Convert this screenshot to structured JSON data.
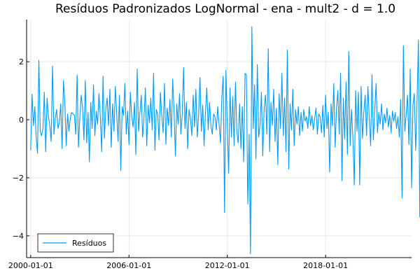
{
  "chart_data": {
    "type": "line",
    "title": "Resíduos Padronizados LogNormal - ena - mult2 - d = 1.0",
    "xlabel": "",
    "ylabel": "",
    "x_start": "2000-01",
    "x_frequency": "monthly",
    "x_ticks": [
      "2000-01-01",
      "2006-01-01",
      "2012-01-01",
      "2018-01-01"
    ],
    "y_ticks": [
      -4,
      -2,
      0,
      2
    ],
    "y_tick_labels": [
      "−4",
      "−2",
      "0",
      "2"
    ],
    "xlim": [
      "1999-10-01",
      "2023-04-01"
    ],
    "ylim": [
      -4.75,
      3.45
    ],
    "grid": true,
    "legend_position": "bottom-left",
    "series": [
      {
        "name": "Resíduos",
        "color": "#009AFA",
        "values": [
          -1.05,
          0.88,
          -0.2,
          0.45,
          -0.6,
          -1.15,
          2.05,
          -0.4,
          -0.55,
          -0.3,
          0.95,
          -1.1,
          0.75,
          0.1,
          -0.2,
          -0.75,
          1.85,
          -0.5,
          0.05,
          0.35,
          -0.3,
          -0.1,
          0.55,
          -1.0,
          1.35,
          0.6,
          -0.9,
          0.2,
          -0.4,
          0.05,
          0.25,
          0.2,
          0.15,
          -0.5,
          1.55,
          -0.95,
          0.1,
          0.85,
          0.4,
          -0.7,
          1.35,
          -0.8,
          0.25,
          -1.45,
          0.6,
          -0.3,
          1.2,
          -0.55,
          0.3,
          -0.15,
          0.9,
          0.1,
          -1.1,
          1.5,
          -0.65,
          0.35,
          0.75,
          -0.2,
          1.05,
          -0.95,
          0.55,
          -0.4,
          1.15,
          0.2,
          -0.75,
          0.85,
          -1.75,
          0.45,
          0.15,
          1.25,
          -0.5,
          0.3,
          -0.85,
          0.95,
          0.1,
          -0.25,
          0.6,
          -1.2,
          1.75,
          -0.4,
          0.25,
          0.85,
          -0.6,
          0.05,
          1.1,
          -0.9,
          0.5,
          -0.1,
          0.75,
          -0.35,
          1.6,
          -1.05,
          0.35,
          0.2,
          -0.7,
          0.95,
          0.15,
          -0.45,
          1.25,
          -0.85,
          0.4,
          -0.2,
          0.7,
          -0.6,
          1.4,
          0.3,
          -1.25,
          0.55,
          -0.15,
          0.9,
          -0.5,
          0.2,
          1.8,
          -0.3,
          0.6,
          -1.0,
          0.35,
          0.05,
          -0.55,
          0.85,
          -0.25,
          1.05,
          -0.6,
          0.15,
          1.45,
          -0.4,
          0.5,
          -0.9,
          0.2,
          1.1,
          -0.35,
          0.6,
          -0.2,
          -0.5,
          0.2,
          0.1,
          -0.35,
          0.45,
          -0.15,
          -0.8,
          0.75,
          1.5,
          -3.2,
          1.7,
          -0.2,
          -1.85,
          1.1,
          -0.6,
          0.8,
          -0.9,
          1.3,
          -0.4,
          -0.8,
          0.55,
          -1.0,
          0.45,
          -1.45,
          1.6,
          1.55,
          -2.9,
          -0.5,
          -4.62,
          3.2,
          -0.3,
          1.2,
          -1.35,
          1.9,
          -0.6,
          -0.2,
          0.95,
          -1.25,
          0.4,
          0.85,
          -0.5,
          2.45,
          -1.1,
          0.6,
          -0.2,
          1.05,
          -0.75,
          0.4,
          -1.55,
          0.9,
          -0.3,
          1.6,
          -0.55,
          0.75,
          -1.1,
          2.4,
          -1.7,
          0.55,
          -0.35,
          1.05,
          -0.9,
          0.35,
          -0.15,
          0.45,
          -0.55,
          0.25,
          -0.4,
          0.35,
          -0.05,
          0.1,
          -0.3,
          0.45,
          -0.2,
          0.15,
          -0.35,
          0.05,
          0.4,
          -0.5,
          0.2,
          0.1,
          -0.45,
          0.5,
          -0.6,
          0.85,
          -0.3,
          0.25,
          -1.8,
          0.55,
          -0.2,
          1.25,
          -0.95,
          0.4,
          1.0,
          -0.5,
          1.6,
          -2.1,
          0.75,
          -0.65,
          1.3,
          -1.2,
          2.35,
          -0.9,
          0.35,
          -0.6,
          -2.25,
          1.0,
          -0.4,
          0.95,
          -2.25,
          1.15,
          -0.65,
          0.25,
          0.85,
          -0.55,
          1.15,
          0.05,
          -0.9,
          1.55,
          -0.7,
          0.3,
          1.25,
          -0.45,
          0.25,
          -0.15,
          0.55,
          -0.35,
          0.2,
          -0.1,
          0.4,
          -0.25,
          0.15,
          -0.45,
          0.3,
          -0.05,
          0.25,
          -0.3,
          0.1,
          -0.6,
          0.7,
          -2.7,
          2.55,
          -0.4,
          0.15,
          0.85,
          -0.85,
          1.75,
          -2.35,
          0.5,
          0.9,
          -1.05,
          0.6,
          2.75,
          -3.35,
          1.05,
          -0.55,
          0.45,
          -0.7,
          0.2,
          0.6,
          -0.35,
          0.5,
          -0.15,
          0.35,
          -0.4,
          0.25,
          -0.8,
          0.6,
          0.15,
          -0.25,
          0.45,
          -0.1,
          0.3,
          0.95,
          -0.55,
          0.05,
          0.4,
          -0.3,
          0.2,
          -0.15,
          0.6,
          -0.5,
          0.25,
          0.1,
          -0.45,
          0.3,
          -0.05,
          0.45
        ]
      }
    ]
  }
}
